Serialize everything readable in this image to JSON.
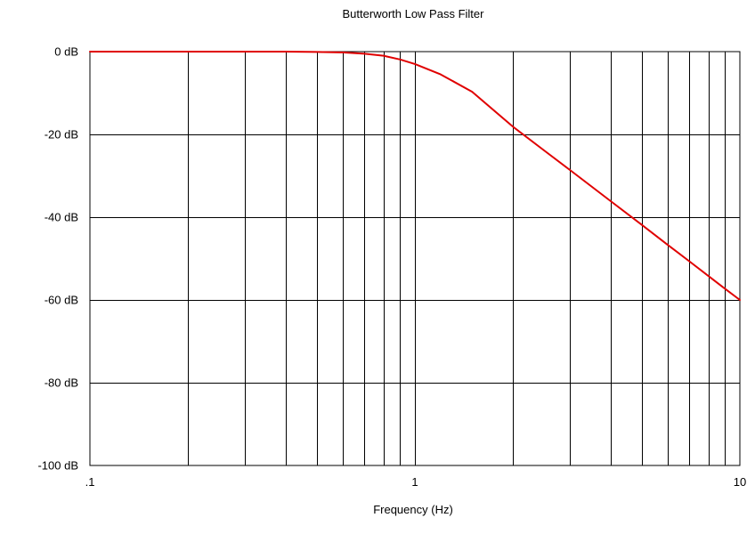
{
  "chart_data": {
    "type": "line",
    "title": "Butterworth Low Pass Filter",
    "xlabel": "Frequency (Hz)",
    "ylabel": "",
    "x_scale": "log",
    "xlim": [
      0.1,
      10
    ],
    "ylim": [
      -100,
      0
    ],
    "grid": true,
    "x_tick_labels": [
      {
        "value": 0.1,
        "label": ".1"
      },
      {
        "value": 1,
        "label": "1"
      },
      {
        "value": 10,
        "label": "10"
      }
    ],
    "y_tick_labels": [
      {
        "value": 0,
        "label": "0 dB"
      },
      {
        "value": -20,
        "label": "-20 dB"
      },
      {
        "value": -40,
        "label": "-40 dB"
      },
      {
        "value": -60,
        "label": "-60 dB"
      },
      {
        "value": -80,
        "label": "-80 dB"
      },
      {
        "value": -100,
        "label": "-100 dB"
      }
    ],
    "x_gridlines": [
      0.2,
      0.3,
      0.4,
      0.5,
      0.6,
      0.7,
      0.8,
      0.9,
      1,
      2,
      3,
      4,
      5,
      6,
      7,
      8,
      9
    ],
    "y_gridlines": [
      -20,
      -40,
      -60,
      -80
    ],
    "series": [
      {
        "color": "#e00000",
        "x": [
          0.1,
          0.2,
          0.3,
          0.4,
          0.5,
          0.6,
          0.7,
          0.8,
          0.9,
          1,
          1.2,
          1.5,
          2,
          2.5,
          3,
          4,
          5,
          6,
          7,
          8,
          9,
          10
        ],
        "y": [
          0,
          0,
          0,
          0,
          -0.07,
          -0.2,
          -0.5,
          -1.0,
          -1.9,
          -3.0,
          -5.5,
          -9.7,
          -18.1,
          -23.9,
          -28.6,
          -36.1,
          -41.9,
          -46.7,
          -50.7,
          -54.2,
          -57.3,
          -60.0
        ]
      }
    ]
  }
}
